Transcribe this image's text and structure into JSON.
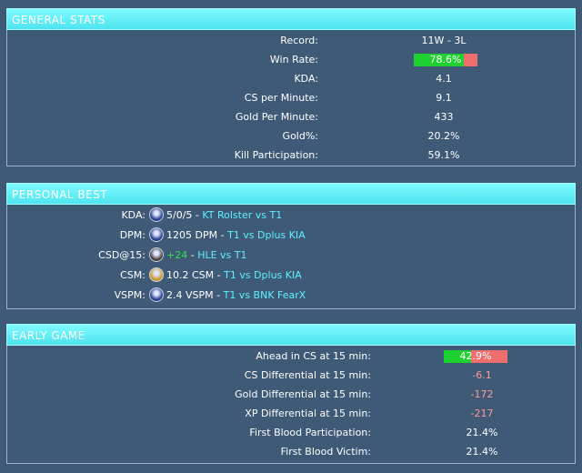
{
  "general_stats": {
    "header": "GENERAL STATS",
    "rows": [
      {
        "label": "Record:",
        "value": "11W - 3L"
      },
      {
        "label": "Win Rate:",
        "value": "78.6%",
        "bar_fraction": 0.786
      },
      {
        "label": "KDA:",
        "value": "4.1"
      },
      {
        "label": "CS per Minute:",
        "value": "9.1"
      },
      {
        "label": "Gold Per Minute:",
        "value": "433"
      },
      {
        "label": "Gold%:",
        "value": "20.2%"
      },
      {
        "label": "Kill Participation:",
        "value": "59.1%"
      }
    ]
  },
  "personal_best": {
    "header": "PERSONAL BEST",
    "rows": [
      {
        "label": "KDA:",
        "icon": "champion-portrait-icon",
        "icon_color": "#2a3f8f",
        "value": "5/0/5",
        "sep": " - ",
        "match": "KT Rolster vs T1"
      },
      {
        "label": "DPM:",
        "icon": "champion-portrait-icon",
        "icon_color": "#2a3f8f",
        "value": "1205 DPM",
        "sep": " - ",
        "match": "T1 vs Dplus KIA"
      },
      {
        "label": "CSD@15:",
        "icon": "champion-portrait-icon",
        "icon_color": "#4a4040",
        "value": "+24",
        "positive": true,
        "sep": " - ",
        "match": "HLE vs T1"
      },
      {
        "label": "CSM:",
        "icon": "champion-portrait-icon",
        "icon_color": "#c9962e",
        "value": "10.2 CSM",
        "sep": " - ",
        "match": "T1 vs Dplus KIA"
      },
      {
        "label": "VSPM:",
        "icon": "champion-portrait-icon",
        "icon_color": "#2a3f8f",
        "value": "2.4 VSPM",
        "sep": " - ",
        "match": "T1 vs BNK FearX"
      }
    ]
  },
  "early_game": {
    "header": "EARLY GAME",
    "rows": [
      {
        "label": "Ahead in CS at 15 min:",
        "value": "42.9%",
        "bar_fraction": 0.429
      },
      {
        "label": "CS Differential at 15 min:",
        "value": "-6.1",
        "negative": true
      },
      {
        "label": "Gold Differential at 15 min:",
        "value": "-172",
        "negative": true
      },
      {
        "label": "XP Differential at 15 min:",
        "value": "-217",
        "negative": true
      },
      {
        "label": "First Blood Participation:",
        "value": "21.4%"
      },
      {
        "label": "First Blood Victim:",
        "value": "21.4%"
      }
    ]
  },
  "colors": {
    "background": "#3e5a77",
    "header": "#5eecf7",
    "bar_win": "#1fd12f",
    "bar_loss": "#ef6f6f",
    "match_link": "#5ff0ff",
    "negative": "#ff9a9a",
    "positive": "#33e04a"
  }
}
